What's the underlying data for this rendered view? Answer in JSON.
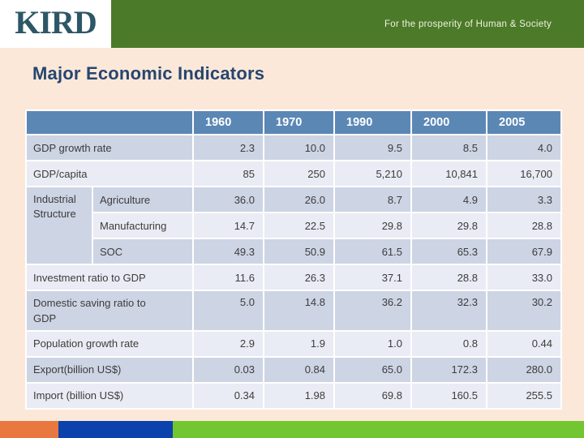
{
  "header": {
    "logo": "KIRD",
    "slogan": "For the prosperity of Human & Society"
  },
  "title": "Major Economic Indicators",
  "table": {
    "years": [
      "1960",
      "1970",
      "1990",
      "2000",
      "2005"
    ],
    "rows": [
      {
        "label": "GDP growth rate",
        "values": [
          "2.3",
          "10.0",
          "9.5",
          "8.5",
          "4.0"
        ]
      },
      {
        "label": "GDP/capita",
        "values": [
          "85",
          "250",
          "5,210",
          "10,841",
          "16,700"
        ]
      },
      {
        "group": "Industrial Structure",
        "label": "Agriculture",
        "values": [
          "36.0",
          "26.0",
          "8.7",
          "4.9",
          "3.3"
        ]
      },
      {
        "label": "Manufacturing",
        "values": [
          "14.7",
          "22.5",
          "29.8",
          "29.8",
          "28.8"
        ]
      },
      {
        "label": "SOC",
        "values": [
          "49.3",
          "50.9",
          "61.5",
          "65.3",
          "67.9"
        ]
      },
      {
        "label": "Investment ratio to GDP",
        "values": [
          "11.6",
          "26.3",
          "37.1",
          "28.8",
          "33.0"
        ]
      },
      {
        "label": "Domestic saving ratio to GDP",
        "values": [
          "5.0",
          "14.8",
          "36.2",
          "32.3",
          "30.2"
        ]
      },
      {
        "label": "Population growth rate",
        "values": [
          "2.9",
          "1.9",
          "1.0",
          "0.8",
          "0.44"
        ]
      },
      {
        "label": "Export(billion US$)",
        "values": [
          "0.03",
          "0.84",
          "65.0",
          "172.3",
          "280.0"
        ]
      },
      {
        "label": "Import (billion US$)",
        "values": [
          "0.34",
          "1.98",
          "69.8",
          "160.5",
          "255.5"
        ]
      }
    ]
  },
  "colors": {
    "header_green": "#4b7b28",
    "body_bg": "#fce8d9",
    "title_navy": "#26466f",
    "logo_teal": "#2d5766",
    "table_header_blue": "#5b87b5",
    "row_dark": "#cdd4e4",
    "row_light": "#e9ecf4",
    "footer_orange": "#e87840",
    "footer_blue": "#0b42ab",
    "footer_green": "#72c632"
  }
}
